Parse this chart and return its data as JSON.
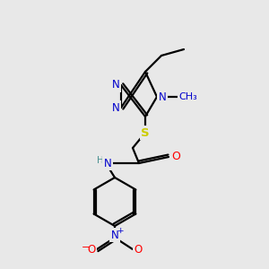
{
  "bg_color": "#e8e8e8",
  "atom_colors": {
    "N": "#0000cc",
    "O": "#ff0000",
    "S": "#cccc00",
    "C": "#000000",
    "H": "#4a9090"
  },
  "bond_color": "#000000",
  "bond_lw": 1.6,
  "figsize": [
    3.0,
    3.0
  ],
  "dpi": 100,
  "xlim": [
    0,
    300
  ],
  "ylim": [
    0,
    300
  ]
}
